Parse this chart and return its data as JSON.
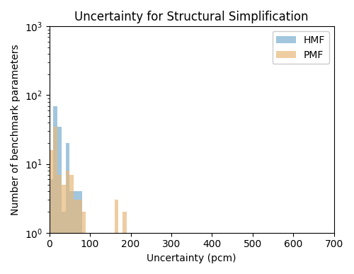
{
  "title": "Uncertainty for Structural Simplification",
  "xlabel": "Uncertainty (pcm)",
  "ylabel": "Number of benchmark parameters",
  "xlim": [
    0,
    700
  ],
  "ylim_log": [
    1,
    1000
  ],
  "bin_width": 10,
  "hmf_bins": [
    10,
    20,
    30,
    40,
    50,
    60,
    70,
    80,
    90,
    100,
    110,
    120,
    130,
    140,
    150,
    160,
    170,
    180,
    190,
    200,
    210,
    220,
    230,
    240,
    250,
    260,
    270,
    280,
    290,
    300,
    310,
    320,
    330,
    340,
    350
  ],
  "hmf_values": [
    6,
    70,
    35,
    2,
    20,
    4,
    4,
    4,
    1,
    1,
    0,
    0,
    0,
    0,
    0,
    1,
    0,
    1,
    0,
    0,
    0,
    0,
    0,
    0,
    0,
    0,
    0,
    0,
    0,
    0,
    0,
    0,
    0,
    0,
    0
  ],
  "pmf_bins": [
    10,
    20,
    30,
    40,
    50,
    60,
    70,
    80,
    90,
    100,
    110,
    120,
    130,
    140,
    150,
    160,
    170,
    180,
    190,
    200,
    210,
    220,
    230,
    240,
    250,
    260,
    270,
    280,
    290,
    300,
    310,
    320,
    330,
    340,
    350,
    360
  ],
  "pmf_values": [
    16,
    35,
    7,
    5,
    8,
    7,
    3,
    3,
    2,
    0,
    1,
    0,
    0,
    0,
    1,
    0,
    3,
    0,
    2,
    0,
    1,
    1,
    0,
    1,
    0,
    1,
    0,
    0,
    1,
    0,
    0,
    1,
    0,
    1,
    0,
    0
  ],
  "hmf_color": "#7aafcf",
  "pmf_color": "#e8b87a",
  "hmf_label": "HMF",
  "pmf_label": "PMF",
  "alpha": 0.7,
  "xticks": [
    0,
    100,
    200,
    300,
    400,
    500,
    600,
    700
  ],
  "figsize": [
    5.0,
    3.87
  ],
  "dpi": 100
}
